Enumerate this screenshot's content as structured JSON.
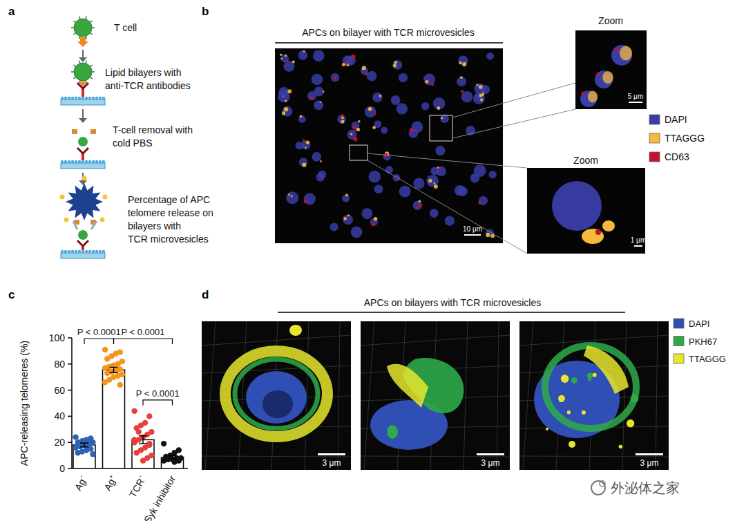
{
  "panel_labels": [
    "a",
    "b",
    "c",
    "d"
  ],
  "panel_a": {
    "steps": [
      {
        "lines": [
          "T cell"
        ]
      },
      {
        "lines": [
          "Lipid bilayers with",
          "anti-TCR antibodies"
        ]
      },
      {
        "lines": [
          "T-cell removal with",
          "cold PBS"
        ]
      },
      {
        "lines": [
          "Percentage of APC",
          "telomere release on",
          "bilayers with",
          "TCR microvesicles"
        ]
      }
    ]
  },
  "panel_b": {
    "title": "APCs on bilayer with TCR microvesicles",
    "zoom_titles": [
      "Zoom",
      "Zoom"
    ],
    "scale_bars": [
      "10 μm",
      "5 μm",
      "1 μm"
    ],
    "legend": [
      {
        "name": "DAPI",
        "color": "#3a3da6"
      },
      {
        "name": "TTAGGG",
        "color": "#f6b93b"
      },
      {
        "name": "CD63",
        "color": "#c0142a"
      }
    ]
  },
  "chart_data": {
    "type": "bar",
    "y_label": "APC-releasing telomeres (%)",
    "categories": [
      "Ag⁻",
      "Ag⁺",
      "TCR⁻",
      "Syk inhibitor"
    ],
    "values": [
      18,
      75.5,
      22,
      8.5
    ],
    "errors": [
      1.5,
      2,
      3,
      1.2
    ],
    "points": [
      [
        24,
        23,
        22,
        21,
        20,
        20,
        19,
        18,
        17,
        16,
        15,
        14,
        13,
        12,
        11,
        18,
        21,
        17
      ],
      [
        91,
        89,
        88,
        86,
        84,
        82,
        80,
        79,
        78,
        77,
        76,
        75,
        74,
        73,
        72,
        71,
        70,
        68,
        66,
        64
      ],
      [
        44,
        40,
        35,
        33,
        31,
        28,
        26,
        24,
        22,
        20,
        18,
        16,
        14,
        12,
        10,
        8,
        6,
        28,
        22,
        19
      ],
      [
        19,
        14,
        12,
        10,
        9,
        8,
        8,
        7,
        7,
        6,
        6,
        5
      ]
    ],
    "colors": [
      "#2d63b3",
      "#f7941d",
      "#e5413a",
      "#111111"
    ],
    "ylim": [
      0,
      100
    ],
    "yticks": [
      0,
      20,
      40,
      60,
      80,
      100
    ],
    "annotations": [
      {
        "text": "P < 0.0001",
        "from": 0,
        "to": 1
      },
      {
        "text": "P < 0.0001",
        "from": 1,
        "to": 3
      },
      {
        "text": "P < 0.0001",
        "from": 2,
        "to": 3
      }
    ]
  },
  "panel_d": {
    "title": "APCs on bilayers with TCR microvesicles",
    "scale_bars": [
      "3 μm",
      "3 μm",
      "3 μm"
    ],
    "legend": [
      {
        "name": "DAPI",
        "color": "#2f4fb5"
      },
      {
        "name": "PKH67",
        "color": "#2eaa4a"
      },
      {
        "name": "TTAGGG",
        "color": "#e6e62e"
      }
    ]
  },
  "watermark": "外泌体之家"
}
